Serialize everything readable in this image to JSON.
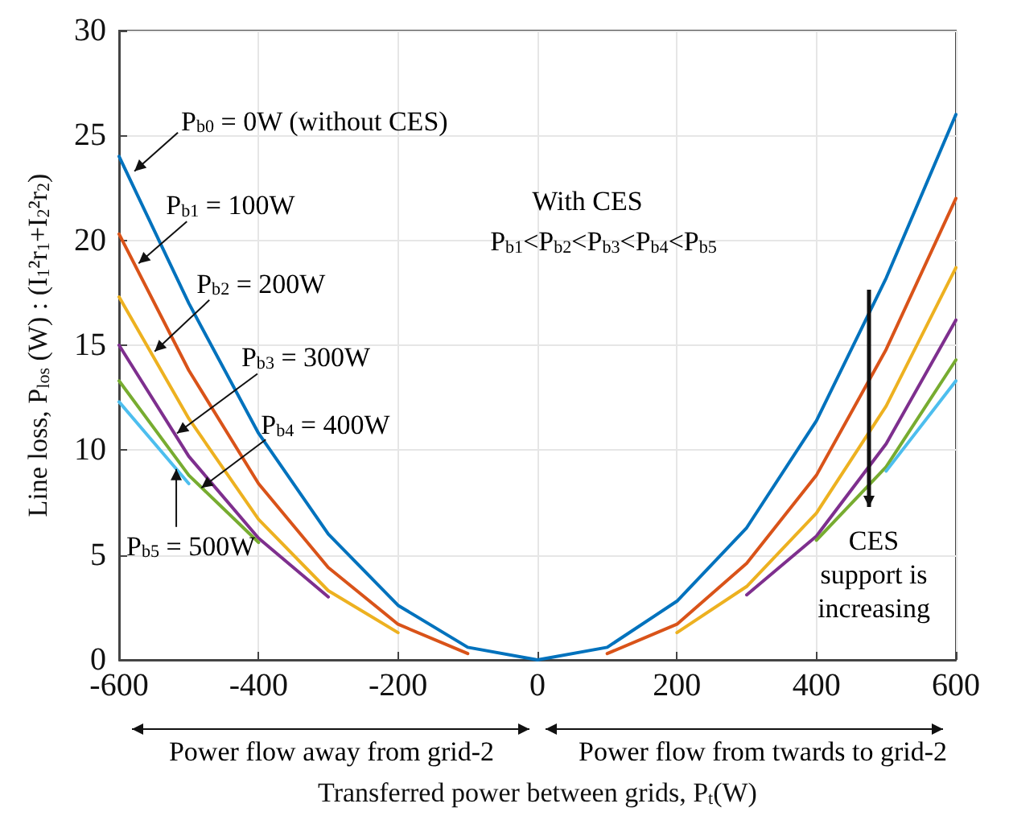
{
  "chart_data": {
    "type": "line",
    "xlabel": "Transferred power between grids, P$_{t}$(W)",
    "ylabel": "Line loss, P$_{los}$ (W) : (I$_{1}$²r$_{1}$+I$_{2}$²r$_{2}$)",
    "x": [
      -600,
      -500,
      -400,
      -300,
      -200,
      -100,
      0,
      100,
      200,
      300,
      400,
      500,
      600
    ],
    "series": [
      {
        "color": "#0072bd",
        "values": [
          24.0,
          17.0,
          10.8,
          6.0,
          2.6,
          0.6,
          0,
          0.6,
          2.8,
          6.3,
          11.4,
          18.2,
          26.0
        ]
      },
      {
        "color": "#d95319",
        "values": [
          20.3,
          13.8,
          8.4,
          4.4,
          1.7,
          0.3,
          null,
          0.3,
          1.7,
          4.6,
          8.8,
          14.8,
          22.0
        ]
      },
      {
        "color": "#edb120",
        "values": [
          17.3,
          11.5,
          6.7,
          3.3,
          1.3,
          null,
          null,
          null,
          1.3,
          3.5,
          7.0,
          12.1,
          18.7
        ]
      },
      {
        "color": "#7e2f8e",
        "values": [
          15.0,
          9.7,
          5.8,
          3.0,
          null,
          null,
          null,
          null,
          null,
          3.1,
          5.9,
          10.3,
          16.2
        ]
      },
      {
        "color": "#77ac30",
        "values": [
          13.3,
          8.8,
          5.6,
          null,
          null,
          null,
          null,
          null,
          null,
          null,
          5.7,
          9.2,
          14.3
        ]
      },
      {
        "color": "#4dbeee",
        "values": [
          12.3,
          8.4,
          null,
          null,
          null,
          null,
          null,
          null,
          null,
          null,
          null,
          9.0,
          13.3
        ]
      }
    ],
    "xlim": [
      -600,
      600
    ],
    "ylim": [
      0,
      30
    ],
    "xticks": [
      -600,
      -400,
      -200,
      0,
      200,
      400,
      600
    ],
    "yticks": [
      0,
      5,
      10,
      15,
      20,
      25,
      30
    ],
    "grid": true,
    "marker": "none",
    "line_style": "solid",
    "annotations": [
      {
        "text": "P$_{b0}$ = 0W (without CES)",
        "x": -578,
        "y": 23.3
      },
      {
        "text": "P$_{b1}$ = 100W",
        "x": -572,
        "y": 18.9
      },
      {
        "text": "P$_{b2}$ = 200W",
        "x": -549,
        "y": 14.7
      },
      {
        "text": "P$_{b3}$ = 300W",
        "x": -517,
        "y": 10.8
      },
      {
        "text": "P$_{b4}$ = 400W",
        "x": -482,
        "y": 8.2
      },
      {
        "text": "P$_{b5}$ = 500W",
        "x": -518,
        "y": 9.1
      },
      "With CES",
      "P$_{b1}$<P$_{b2}$<P$_{b3}$<P$_{b4}$<P$_{b5}$",
      "CES\nsupport is\nincreasing",
      "Power flow away from grid-2",
      "Power flow from twards to grid-2"
    ]
  }
}
